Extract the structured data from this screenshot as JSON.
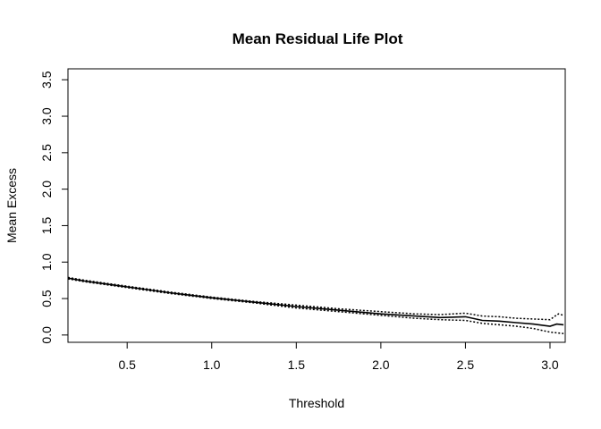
{
  "chart_data": {
    "type": "line",
    "title": "Mean Residual Life Plot",
    "xlabel": "Threshold",
    "ylabel": "Mean Excess",
    "xlim": [
      0.15,
      3.09
    ],
    "ylim": [
      -0.1,
      3.65
    ],
    "xticks": [
      0.5,
      1.0,
      1.5,
      2.0,
      2.5,
      3.0
    ],
    "xtick_labels": [
      "0.5",
      "1.0",
      "1.5",
      "2.0",
      "2.5",
      "3.0"
    ],
    "yticks": [
      0.0,
      0.5,
      1.0,
      1.5,
      2.0,
      2.5,
      3.0,
      3.5
    ],
    "ytick_labels": [
      "0.0",
      "0.5",
      "1.0",
      "1.5",
      "2.0",
      "2.5",
      "3.0",
      "3.5"
    ],
    "grid": false,
    "legend": "none",
    "series": [
      {
        "role": "estimate",
        "style": "solid",
        "x": [
          0.15,
          0.25,
          0.5,
          0.75,
          1.0,
          1.25,
          1.5,
          1.75,
          2.0,
          2.2,
          2.35,
          2.5,
          2.6,
          2.7,
          2.8,
          2.9,
          3.0,
          3.04,
          3.08
        ],
        "y": [
          0.78,
          0.74,
          0.66,
          0.58,
          0.51,
          0.45,
          0.39,
          0.34,
          0.29,
          0.26,
          0.24,
          0.25,
          0.2,
          0.19,
          0.17,
          0.15,
          0.12,
          0.15,
          0.14
        ]
      },
      {
        "role": "upper-ci",
        "style": "dotted",
        "x": [
          0.15,
          0.25,
          0.5,
          0.75,
          1.0,
          1.25,
          1.5,
          1.75,
          2.0,
          2.2,
          2.35,
          2.5,
          2.6,
          2.7,
          2.8,
          2.9,
          3.0,
          3.03,
          3.05,
          3.08
        ],
        "y": [
          0.79,
          0.75,
          0.67,
          0.59,
          0.52,
          0.46,
          0.41,
          0.36,
          0.32,
          0.29,
          0.28,
          0.3,
          0.26,
          0.25,
          0.23,
          0.22,
          0.21,
          0.26,
          0.29,
          0.27
        ]
      },
      {
        "role": "lower-ci",
        "style": "dotted",
        "x": [
          0.15,
          0.25,
          0.5,
          0.75,
          1.0,
          1.25,
          1.5,
          1.75,
          2.0,
          2.2,
          2.35,
          2.5,
          2.6,
          2.7,
          2.8,
          2.9,
          3.0,
          3.04,
          3.08
        ],
        "y": [
          0.77,
          0.73,
          0.65,
          0.57,
          0.5,
          0.44,
          0.37,
          0.32,
          0.27,
          0.23,
          0.21,
          0.2,
          0.16,
          0.14,
          0.12,
          0.09,
          0.04,
          0.03,
          0.02
        ]
      }
    ]
  }
}
